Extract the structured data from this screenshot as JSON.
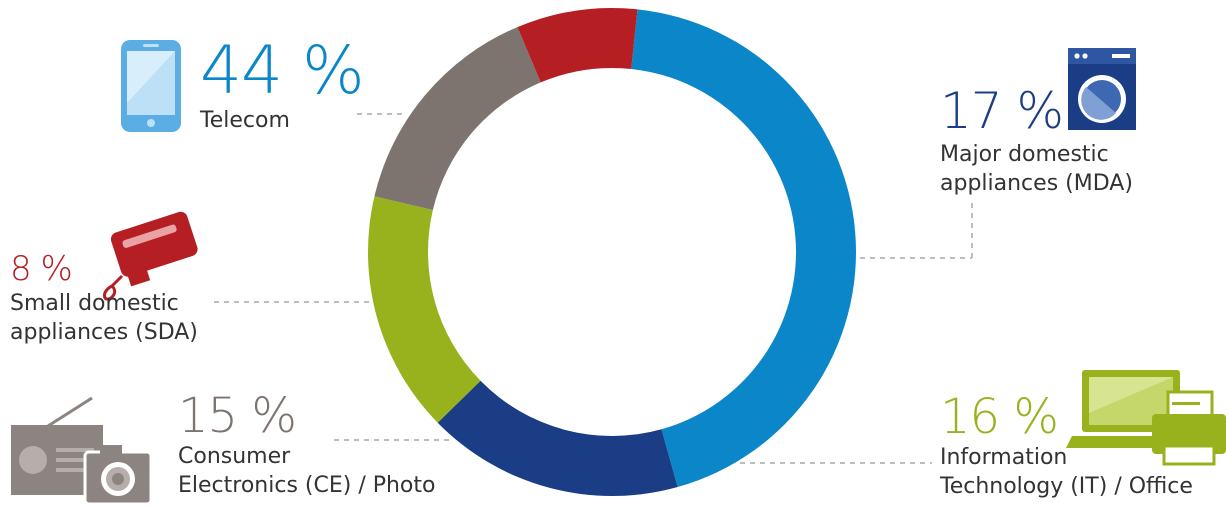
{
  "chart_data": {
    "type": "pie",
    "variant": "donut",
    "title": "",
    "legend": "none",
    "start_angle_deg": -84,
    "slices": [
      {
        "label": "Telecom",
        "value": 44,
        "display": "44 %",
        "color": "#0a86c9",
        "icon": "smartphone-icon"
      },
      {
        "label": "Major domestic appliances (MDA)",
        "lines": [
          "Major domestic",
          "appliances (MDA)"
        ],
        "value": 17,
        "display": "17 %",
        "color": "#1a3d85",
        "icon": "washing-machine-icon"
      },
      {
        "label": "Information Technology (IT) / Office",
        "lines": [
          "Information",
          "Technology (IT) / Office"
        ],
        "value": 16,
        "display": "16 %",
        "color": "#97b21d",
        "icon": "laptop-printer-icon"
      },
      {
        "label": "Consumer Electronics (CE) / Photo",
        "lines": [
          "Consumer",
          "Electronics (CE) / Photo"
        ],
        "value": 15,
        "display": "15 %",
        "color": "#7d7470",
        "icon": "radio-camera-icon"
      },
      {
        "label": "Small domestic appliances (SDA)",
        "lines": [
          "Small domestic",
          "appliances (SDA)"
        ],
        "value": 8,
        "display": "8 %",
        "color": "#b51f24",
        "icon": "hand-mixer-icon"
      }
    ]
  }
}
